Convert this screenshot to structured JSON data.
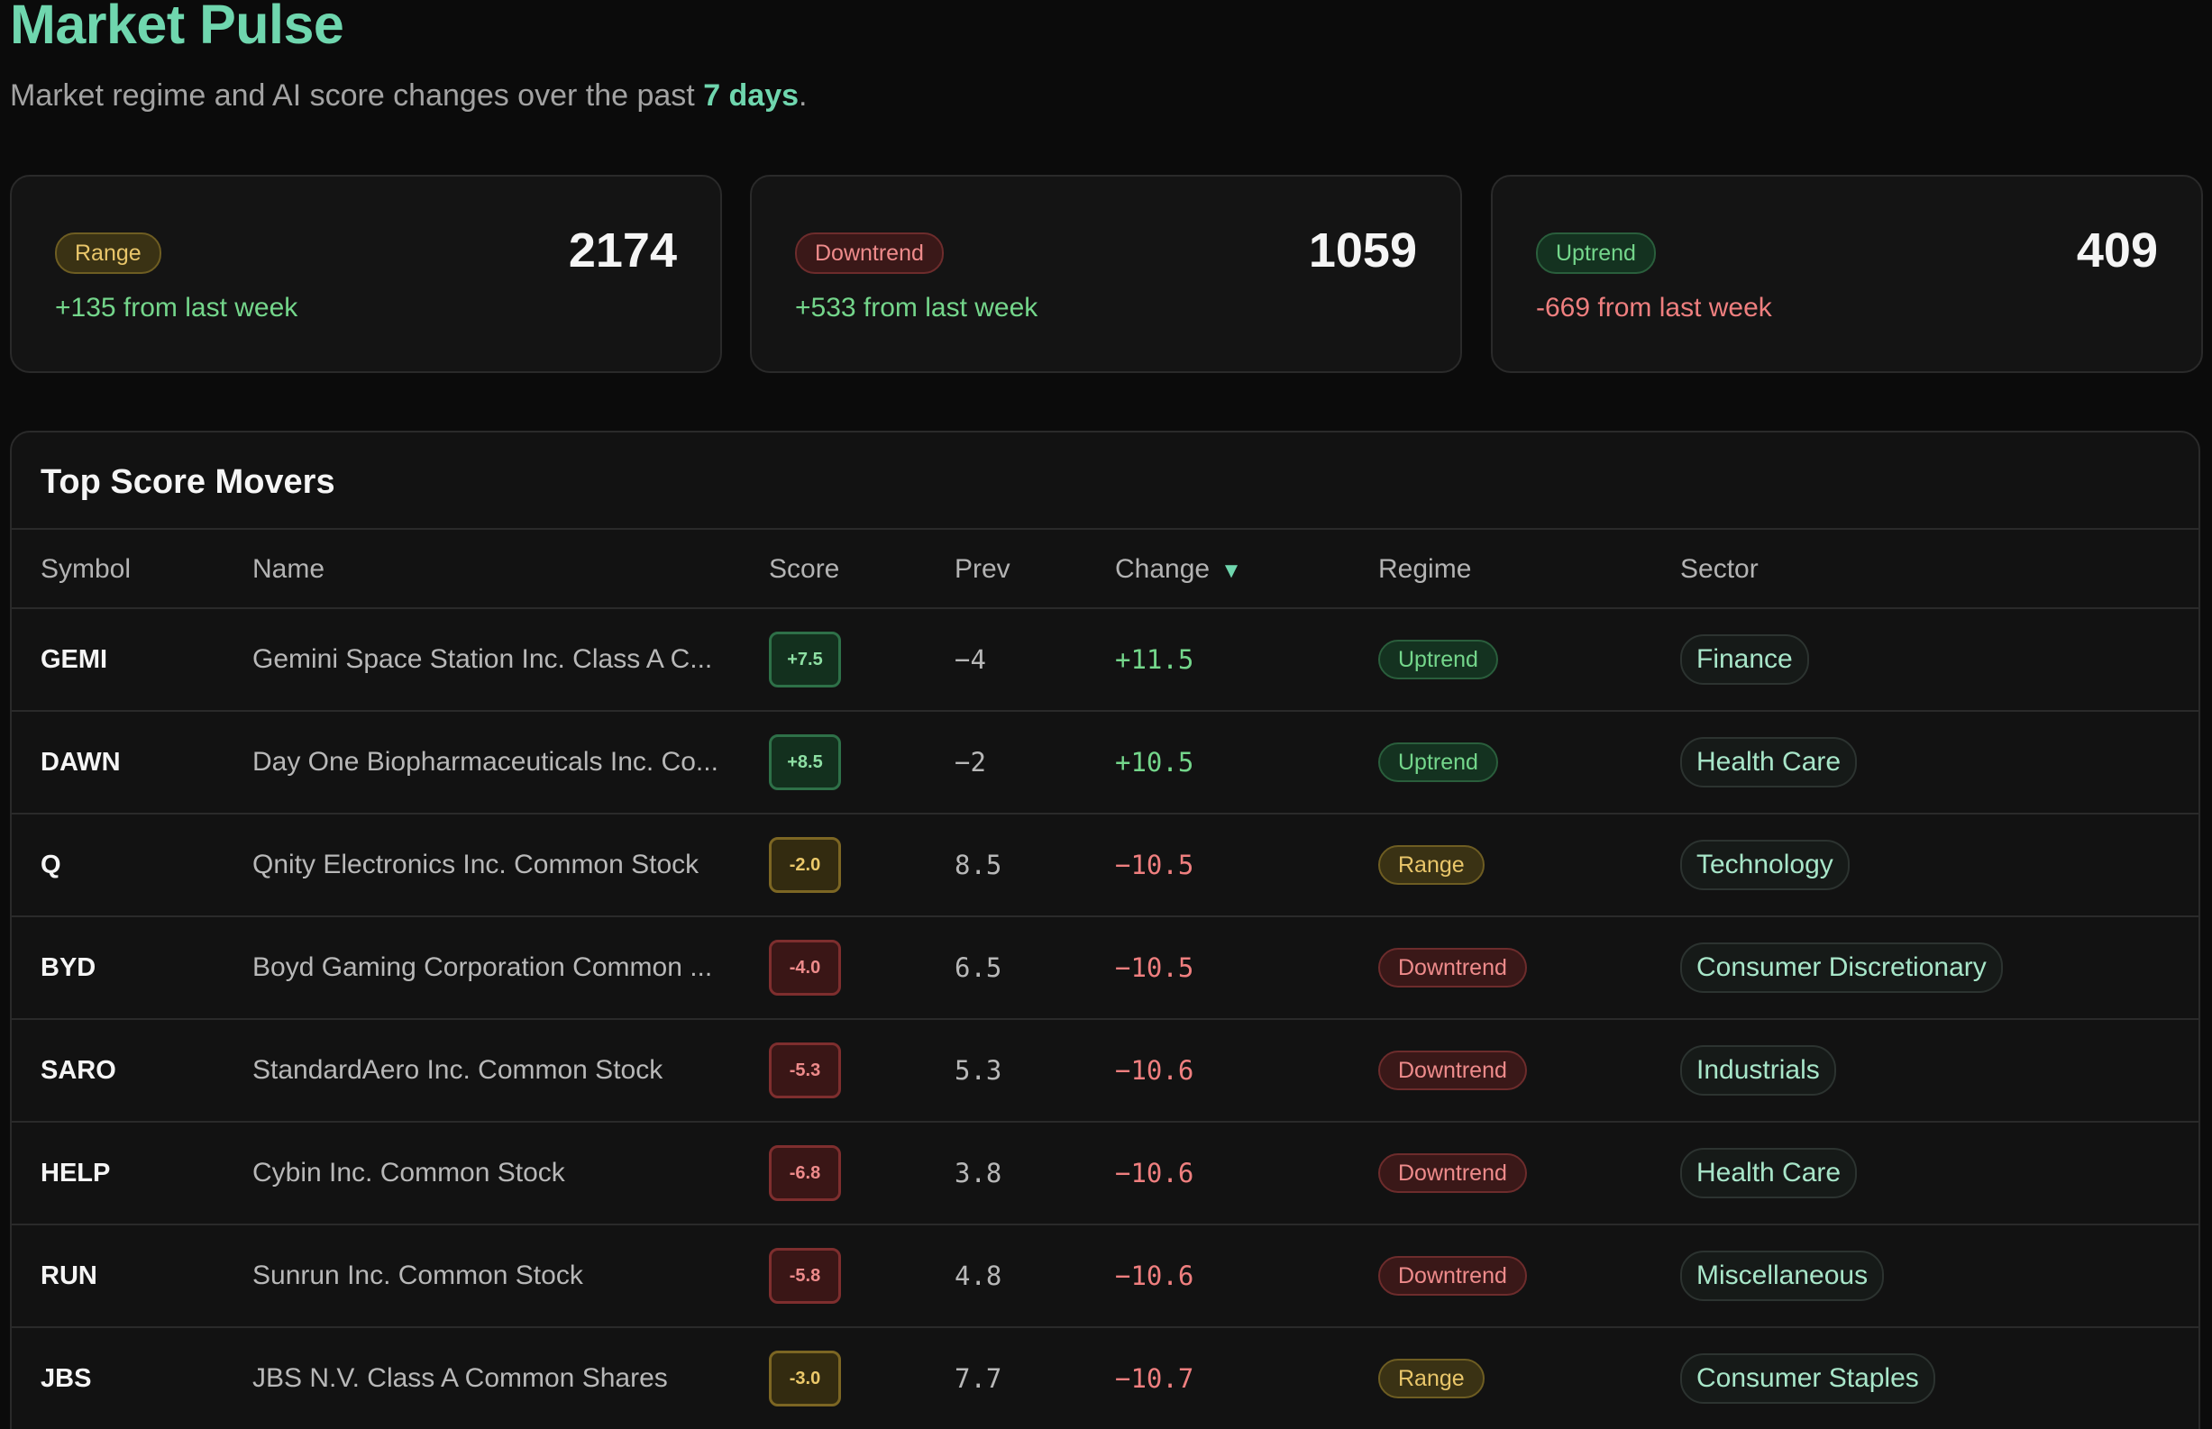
{
  "header": {
    "title": "Market Pulse",
    "subtitle_prefix": "Market regime and AI score changes over the past ",
    "subtitle_highlight": "7 days",
    "subtitle_suffix": "."
  },
  "cards": [
    {
      "badge": "Range",
      "count": "2174",
      "delta": "+135 from last week"
    },
    {
      "badge": "Downtrend",
      "count": "1059",
      "delta": "+533 from last week"
    },
    {
      "badge": "Uptrend",
      "count": "409",
      "delta": "-669 from last week"
    }
  ],
  "movers": {
    "title": "Top Score Movers",
    "columns": {
      "symbol": "Symbol",
      "name": "Name",
      "score": "Score",
      "prev": "Prev",
      "change": "Change",
      "regime": "Regime",
      "sector": "Sector"
    },
    "sort_indicator": "▼",
    "rows": [
      {
        "symbol": "GEMI",
        "name": "Gemini Space Station Inc. Class A C...",
        "score": "+7.5",
        "prev": "−4",
        "change": "+11.5",
        "regime": "Uptrend",
        "sector": "Finance"
      },
      {
        "symbol": "DAWN",
        "name": "Day One Biopharmaceuticals Inc. Co...",
        "score": "+8.5",
        "prev": "−2",
        "change": "+10.5",
        "regime": "Uptrend",
        "sector": "Health Care"
      },
      {
        "symbol": "Q",
        "name": "Qnity Electronics Inc. Common Stock",
        "score": "-2.0",
        "prev": "8.5",
        "change": "−10.5",
        "regime": "Range",
        "sector": "Technology"
      },
      {
        "symbol": "BYD",
        "name": "Boyd Gaming Corporation Common ...",
        "score": "-4.0",
        "prev": "6.5",
        "change": "−10.5",
        "regime": "Downtrend",
        "sector": "Consumer Discretionary"
      },
      {
        "symbol": "SARO",
        "name": "StandardAero Inc. Common Stock",
        "score": "-5.3",
        "prev": "5.3",
        "change": "−10.6",
        "regime": "Downtrend",
        "sector": "Industrials"
      },
      {
        "symbol": "HELP",
        "name": "Cybin Inc. Common Stock",
        "score": "-6.8",
        "prev": "3.8",
        "change": "−10.6",
        "regime": "Downtrend",
        "sector": "Health Care"
      },
      {
        "symbol": "RUN",
        "name": "Sunrun Inc. Common Stock",
        "score": "-5.8",
        "prev": "4.8",
        "change": "−10.6",
        "regime": "Downtrend",
        "sector": "Miscellaneous"
      },
      {
        "symbol": "JBS",
        "name": "JBS N.V. Class A Common Shares",
        "score": "-3.0",
        "prev": "7.7",
        "change": "−10.7",
        "regime": "Range",
        "sector": "Consumer Staples"
      }
    ]
  },
  "colors": {
    "accent": "#6fd6ae",
    "positive": "#74d68b",
    "negative": "#ef7f7f",
    "range": "#e9c66a"
  }
}
